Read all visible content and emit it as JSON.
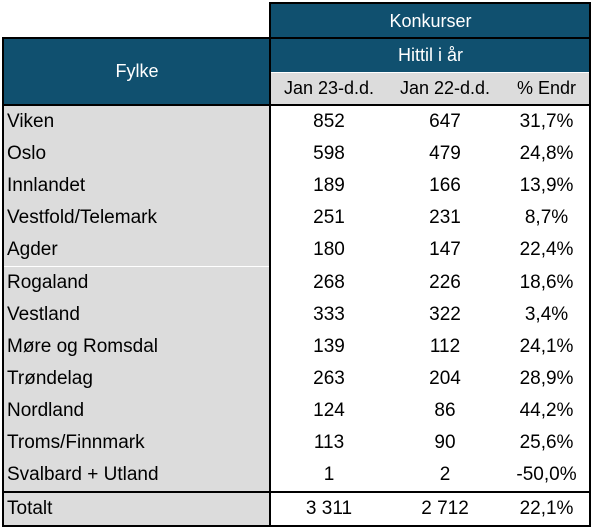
{
  "table": {
    "title": "Konkurser",
    "subtitle": "Hittil i år",
    "row_header": "Fylke",
    "columns": [
      "Jan 23-d.d.",
      "Jan 22-d.d.",
      "% Endr"
    ],
    "rows": [
      {
        "name": "Viken",
        "cur": "852",
        "prev": "647",
        "pct": "31,7%"
      },
      {
        "name": "Oslo",
        "cur": "598",
        "prev": "479",
        "pct": "24,8%"
      },
      {
        "name": "Innlandet",
        "cur": "189",
        "prev": "166",
        "pct": "13,9%"
      },
      {
        "name": "Vestfold/Telemark",
        "cur": "251",
        "prev": "231",
        "pct": "8,7%"
      },
      {
        "name": "Agder",
        "cur": "180",
        "prev": "147",
        "pct": "22,4%"
      },
      {
        "name": "Rogaland",
        "cur": "268",
        "prev": "226",
        "pct": "18,6%"
      },
      {
        "name": "Vestland",
        "cur": "333",
        "prev": "322",
        "pct": "3,4%"
      },
      {
        "name": "Møre og Romsdal",
        "cur": "139",
        "prev": "112",
        "pct": "24,1%"
      },
      {
        "name": "Trøndelag",
        "cur": "263",
        "prev": "204",
        "pct": "28,9%"
      },
      {
        "name": "Nordland",
        "cur": "124",
        "prev": "86",
        "pct": "44,2%"
      },
      {
        "name": "Troms/Finnmark",
        "cur": "113",
        "prev": "90",
        "pct": "25,6%"
      },
      {
        "name": "Svalbard + Utland",
        "cur": "1",
        "prev": "2",
        "pct": "-50,0%"
      }
    ],
    "total": {
      "name": "Totalt",
      "cur": "3 311",
      "prev": "2 712",
      "pct": "22,1%"
    }
  }
}
